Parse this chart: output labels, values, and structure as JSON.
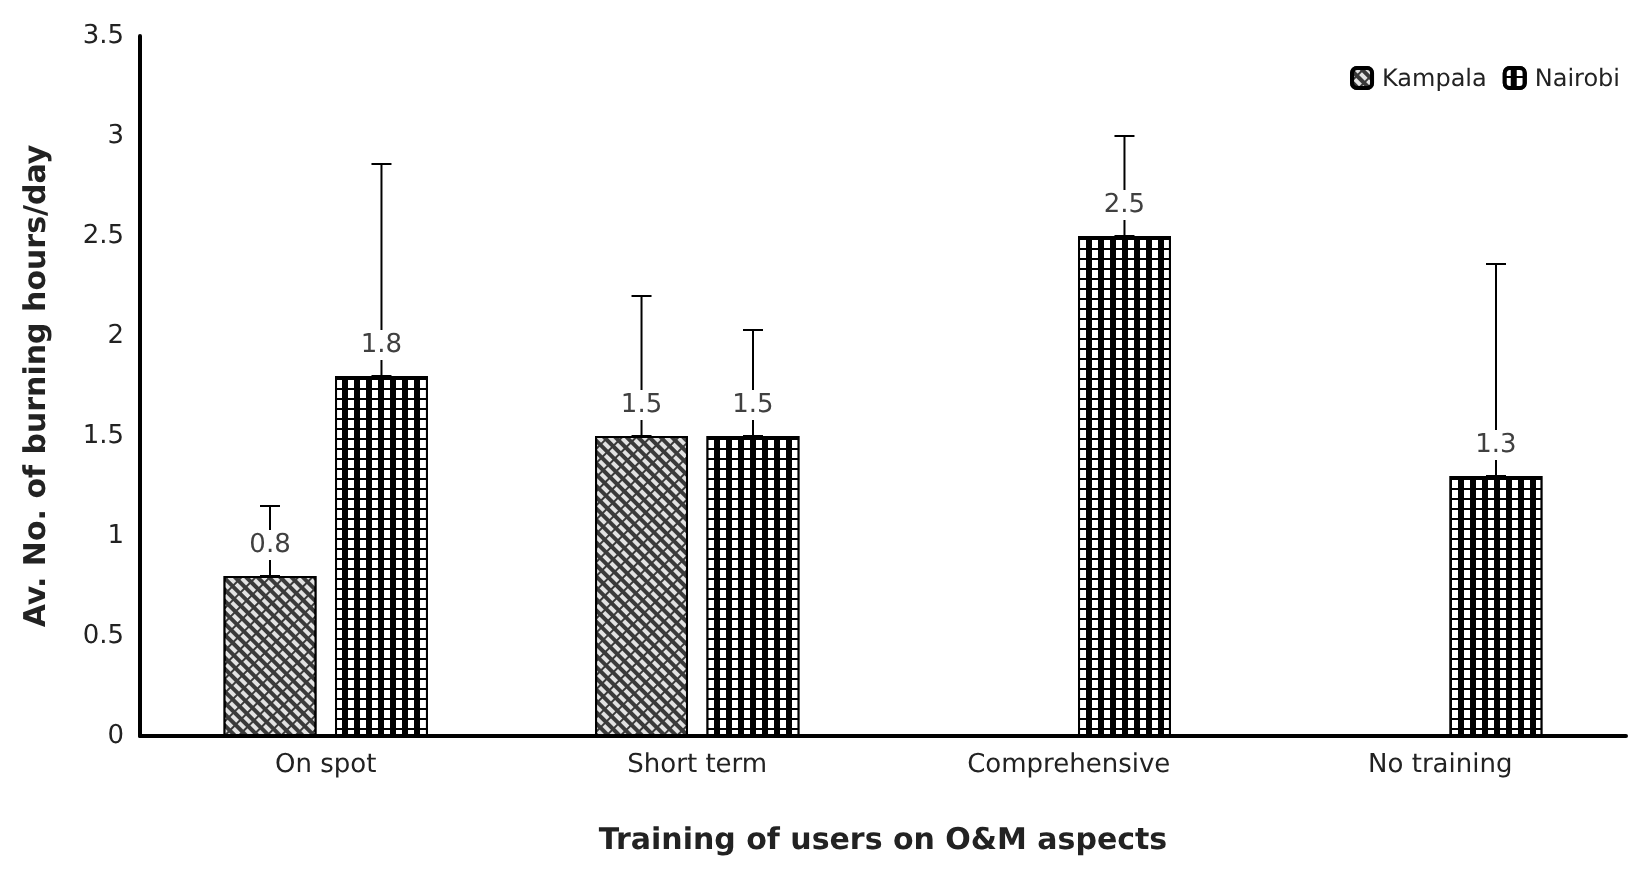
{
  "chart_data": {
    "type": "bar",
    "xlabel": "Training of users on O&M aspects",
    "ylabel": "Av. No. of burning hours/day",
    "categories": [
      "On spot",
      "Short term",
      "Comprehensive",
      "No training"
    ],
    "series": [
      {
        "name": "Kampala",
        "color": "#3a3a3a",
        "values": [
          0.8,
          1.5,
          null,
          null
        ],
        "errors": [
          [
            0.8,
            1.15
          ],
          [
            1.5,
            2.2
          ],
          null,
          null
        ]
      },
      {
        "name": "Nairobi",
        "color": "#000000",
        "values": [
          1.8,
          1.5,
          2.5,
          1.3
        ],
        "errors": [
          [
            1.8,
            2.86
          ],
          [
            1.5,
            2.03
          ],
          [
            2.5,
            3.0
          ],
          [
            1.3,
            2.36
          ]
        ]
      }
    ],
    "ylim": [
      0,
      3.5
    ],
    "yticks": [
      0,
      0.5,
      1,
      1.5,
      2,
      2.5,
      3,
      3.5
    ],
    "grid": false,
    "legend": "top right",
    "data_labels": true
  }
}
